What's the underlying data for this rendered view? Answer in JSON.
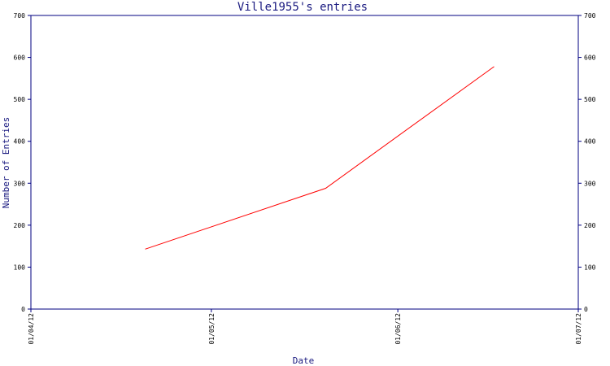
{
  "chart_data": {
    "type": "line",
    "title": "Ville1955's entries",
    "xlabel": "Date",
    "ylabel": "Number of Entries",
    "x_ticks": [
      "01/04/12",
      "01/05/12",
      "01/06/12",
      "01/07/12"
    ],
    "x_tick_dates": [
      "2012-04-01",
      "2012-05-01",
      "2012-06-01",
      "2012-07-01"
    ],
    "xlim": [
      "2012-04-01",
      "2012-07-01"
    ],
    "ylim": [
      0,
      700
    ],
    "y_ticks": [
      0,
      100,
      200,
      300,
      400,
      500,
      600,
      700
    ],
    "series": [
      {
        "color": "#ff0000",
        "x": [
          "2012-04-20",
          "2012-05-20",
          "2012-06-17"
        ],
        "y": [
          143,
          288,
          578
        ]
      }
    ],
    "grid": false,
    "right_axis_mirrored": true,
    "axis_color": "#000080"
  }
}
